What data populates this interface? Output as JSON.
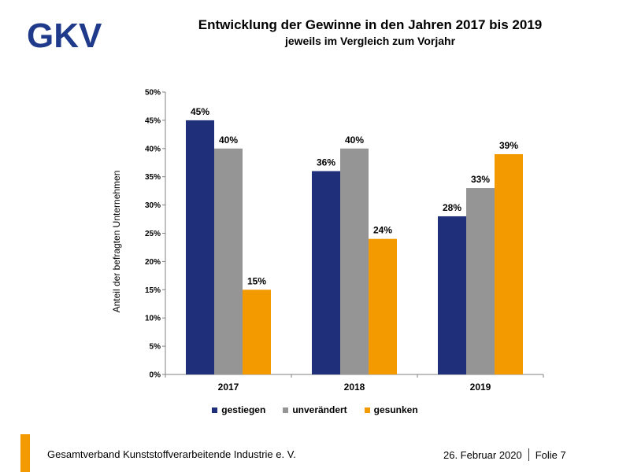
{
  "header": {
    "logo_text": "GKV",
    "title": "Entwicklung der Gewinne in den Jahren 2017 bis 2019",
    "subtitle": "jeweils im Vergleich zum Vorjahr"
  },
  "chart_data": {
    "type": "bar",
    "title": "Entwicklung der Gewinne in den Jahren 2017 bis 2019",
    "subtitle": "jeweils im Vergleich zum Vorjahr",
    "categories": [
      "2017",
      "2018",
      "2019"
    ],
    "series": [
      {
        "name": "gestiegen",
        "color": "#1F2F7A",
        "values": [
          45,
          36,
          28
        ]
      },
      {
        "name": "unverändert",
        "color": "#959595",
        "values": [
          40,
          40,
          33
        ]
      },
      {
        "name": "gesunken",
        "color": "#F39A00",
        "values": [
          15,
          24,
          39
        ]
      }
    ],
    "ylabel": "Anteil der befragten Unternehmen",
    "xlabel": "",
    "ylim": [
      0,
      50
    ],
    "ytick_step": 5,
    "yticks": [
      "0%",
      "5%",
      "10%",
      "15%",
      "20%",
      "25%",
      "30%",
      "35%",
      "40%",
      "45%",
      "50%"
    ],
    "value_suffix": "%",
    "grid": false,
    "legend_position": "bottom"
  },
  "footer": {
    "organization": "Gesamtverband Kunststoffverarbeitende Industrie e. V.",
    "date": "26. Februar 2020",
    "slide": "Folie 7"
  }
}
